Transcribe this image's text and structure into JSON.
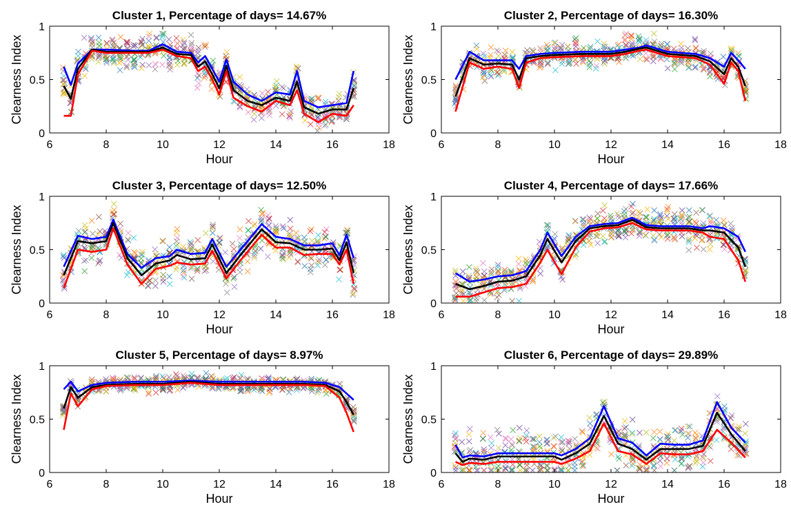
{
  "scatter_palette": [
    "#1f77b4",
    "#ff7f0e",
    "#2ca02c",
    "#d62728",
    "#9467bd",
    "#8c564b",
    "#e377c2",
    "#7f7f7f",
    "#bcbd22",
    "#17becf",
    "#f5b400",
    "#6a3d9a"
  ],
  "chart_data": [
    {
      "type": "line",
      "title": "Cluster 1, Percentage of days= 14.67%",
      "xlabel": "Hour",
      "ylabel": "Clearness Index",
      "xlim": [
        6,
        18
      ],
      "ylim": [
        0,
        1
      ],
      "xticks": [
        "6",
        "8",
        "10",
        "12",
        "14",
        "16",
        "18"
      ],
      "yticks": [
        "0",
        "0.5",
        "1"
      ],
      "scatter_spread": 0.18,
      "x": [
        6.5,
        6.75,
        7,
        7.5,
        8,
        9,
        9.5,
        10,
        10.5,
        11,
        11.25,
        11.5,
        11.75,
        12,
        12.25,
        12.5,
        13,
        13.5,
        14,
        14.5,
        14.75,
        15,
        15.5,
        16,
        16.5,
        16.75
      ],
      "series": [
        {
          "color": "#0000ff",
          "values": [
            0.62,
            0.45,
            0.65,
            0.78,
            0.78,
            0.77,
            0.77,
            0.83,
            0.76,
            0.75,
            0.66,
            0.72,
            0.6,
            0.48,
            0.69,
            0.48,
            0.36,
            0.3,
            0.38,
            0.36,
            0.58,
            0.3,
            0.24,
            0.26,
            0.28,
            0.58
          ]
        },
        {
          "color": "#000000",
          "values": [
            0.44,
            0.32,
            0.6,
            0.78,
            0.76,
            0.76,
            0.76,
            0.8,
            0.74,
            0.73,
            0.62,
            0.67,
            0.55,
            0.42,
            0.63,
            0.4,
            0.3,
            0.26,
            0.33,
            0.3,
            0.48,
            0.24,
            0.18,
            0.22,
            0.22,
            0.42
          ]
        },
        {
          "color": "#ff0000",
          "values": [
            0.16,
            0.16,
            0.55,
            0.77,
            0.75,
            0.75,
            0.75,
            0.78,
            0.72,
            0.7,
            0.58,
            0.62,
            0.5,
            0.36,
            0.58,
            0.33,
            0.25,
            0.2,
            0.3,
            0.26,
            0.4,
            0.18,
            0.1,
            0.18,
            0.16,
            0.26
          ]
        }
      ]
    },
    {
      "type": "line",
      "title": "Cluster 2, Percentage of days= 16.30%",
      "xlabel": "Hour",
      "ylabel": "Clearness Index",
      "xlim": [
        6,
        18
      ],
      "ylim": [
        0,
        1
      ],
      "xticks": [
        "6",
        "8",
        "10",
        "12",
        "14",
        "16",
        "18"
      ],
      "yticks": [
        "0",
        "0.5",
        "1"
      ],
      "scatter_spread": 0.15,
      "x": [
        6.5,
        7,
        7.5,
        8,
        8.5,
        8.75,
        9,
        9.5,
        10,
        11,
        12,
        12.5,
        13,
        13.25,
        13.5,
        14,
        14.5,
        15,
        15.5,
        16,
        16.25,
        16.5,
        16.75
      ],
      "series": [
        {
          "color": "#0000ff",
          "values": [
            0.5,
            0.76,
            0.68,
            0.68,
            0.68,
            0.6,
            0.72,
            0.74,
            0.75,
            0.76,
            0.76,
            0.78,
            0.8,
            0.82,
            0.8,
            0.76,
            0.75,
            0.74,
            0.7,
            0.62,
            0.75,
            0.68,
            0.6
          ]
        },
        {
          "color": "#000000",
          "values": [
            0.34,
            0.7,
            0.64,
            0.65,
            0.64,
            0.5,
            0.7,
            0.72,
            0.73,
            0.74,
            0.74,
            0.76,
            0.79,
            0.8,
            0.78,
            0.74,
            0.73,
            0.72,
            0.67,
            0.55,
            0.7,
            0.62,
            0.44
          ]
        },
        {
          "color": "#ff0000",
          "values": [
            0.2,
            0.66,
            0.6,
            0.62,
            0.6,
            0.42,
            0.66,
            0.7,
            0.71,
            0.72,
            0.72,
            0.74,
            0.77,
            0.78,
            0.76,
            0.72,
            0.71,
            0.7,
            0.64,
            0.46,
            0.66,
            0.58,
            0.3
          ]
        }
      ]
    },
    {
      "type": "line",
      "title": "Cluster 3, Percentage of days= 12.50%",
      "xlabel": "Hour",
      "ylabel": "Clearness Index",
      "xlim": [
        6,
        18
      ],
      "ylim": [
        0,
        1
      ],
      "xticks": [
        "6",
        "8",
        "10",
        "12",
        "14",
        "16",
        "18"
      ],
      "yticks": [
        "0",
        "0.5",
        "1"
      ],
      "scatter_spread": 0.22,
      "x": [
        6.5,
        7,
        7.5,
        8,
        8.25,
        8.75,
        9.25,
        9.75,
        10.25,
        10.5,
        11,
        11.5,
        11.75,
        12.25,
        12.75,
        13.5,
        14,
        14.5,
        15,
        15.5,
        16,
        16.25,
        16.5,
        16.75
      ],
      "series": [
        {
          "color": "#0000ff",
          "values": [
            0.34,
            0.63,
            0.6,
            0.62,
            0.78,
            0.46,
            0.33,
            0.42,
            0.44,
            0.5,
            0.46,
            0.47,
            0.6,
            0.34,
            0.5,
            0.74,
            0.62,
            0.6,
            0.54,
            0.54,
            0.56,
            0.45,
            0.64,
            0.42
          ]
        },
        {
          "color": "#000000",
          "values": [
            0.26,
            0.58,
            0.56,
            0.58,
            0.75,
            0.42,
            0.26,
            0.37,
            0.4,
            0.45,
            0.41,
            0.42,
            0.55,
            0.28,
            0.45,
            0.69,
            0.57,
            0.56,
            0.5,
            0.5,
            0.51,
            0.4,
            0.57,
            0.28
          ]
        },
        {
          "color": "#ff0000",
          "values": [
            0.14,
            0.5,
            0.48,
            0.5,
            0.7,
            0.36,
            0.18,
            0.32,
            0.35,
            0.38,
            0.36,
            0.37,
            0.49,
            0.23,
            0.4,
            0.64,
            0.52,
            0.52,
            0.45,
            0.46,
            0.46,
            0.36,
            0.5,
            0.18
          ]
        }
      ]
    },
    {
      "type": "line",
      "title": "Cluster 4, Percentage of days= 17.66%",
      "xlabel": "Hour",
      "ylabel": "Clearness Index",
      "xlim": [
        6,
        18
      ],
      "ylim": [
        0,
        1
      ],
      "xticks": [
        "6",
        "8",
        "10",
        "12",
        "14",
        "16",
        "18"
      ],
      "yticks": [
        "0",
        "0.5",
        "1"
      ],
      "scatter_spread": 0.2,
      "x": [
        6.5,
        7,
        7.5,
        8,
        8.5,
        9,
        9.5,
        9.75,
        10.25,
        10.75,
        11.25,
        11.75,
        12.25,
        12.75,
        13.25,
        13.75,
        14.25,
        14.75,
        15.25,
        15.5,
        16,
        16.5,
        16.75
      ],
      "series": [
        {
          "color": "#0000ff",
          "values": [
            0.28,
            0.2,
            0.22,
            0.25,
            0.26,
            0.3,
            0.5,
            0.66,
            0.44,
            0.62,
            0.72,
            0.74,
            0.75,
            0.8,
            0.73,
            0.72,
            0.72,
            0.72,
            0.7,
            0.72,
            0.7,
            0.62,
            0.48
          ]
        },
        {
          "color": "#000000",
          "values": [
            0.18,
            0.13,
            0.16,
            0.2,
            0.21,
            0.25,
            0.45,
            0.6,
            0.38,
            0.58,
            0.7,
            0.72,
            0.73,
            0.78,
            0.71,
            0.7,
            0.7,
            0.7,
            0.68,
            0.68,
            0.66,
            0.52,
            0.34
          ]
        },
        {
          "color": "#ff0000",
          "values": [
            0.06,
            0.06,
            0.1,
            0.14,
            0.15,
            0.18,
            0.38,
            0.5,
            0.27,
            0.52,
            0.67,
            0.7,
            0.71,
            0.75,
            0.69,
            0.68,
            0.68,
            0.68,
            0.66,
            0.62,
            0.6,
            0.4,
            0.2
          ]
        }
      ]
    },
    {
      "type": "line",
      "title": "Cluster 5, Percentage of days= 8.97%",
      "xlabel": "Hour",
      "ylabel": "Clearness Index",
      "xlim": [
        6,
        18
      ],
      "ylim": [
        0,
        1
      ],
      "xticks": [
        "6",
        "8",
        "10",
        "12",
        "14",
        "16",
        "18"
      ],
      "yticks": [
        "0",
        "0.5",
        "1"
      ],
      "scatter_spread": 0.08,
      "x": [
        6.5,
        6.75,
        7,
        7.5,
        8,
        9,
        10,
        11,
        12,
        13,
        14,
        15,
        15.75,
        16.25,
        16.5,
        16.75
      ],
      "series": [
        {
          "color": "#0000ff",
          "values": [
            0.78,
            0.85,
            0.76,
            0.82,
            0.84,
            0.85,
            0.85,
            0.86,
            0.85,
            0.85,
            0.85,
            0.85,
            0.84,
            0.8,
            0.74,
            0.68
          ]
        },
        {
          "color": "#000000",
          "values": [
            0.6,
            0.8,
            0.7,
            0.8,
            0.82,
            0.83,
            0.83,
            0.85,
            0.83,
            0.83,
            0.83,
            0.83,
            0.82,
            0.76,
            0.66,
            0.54
          ]
        },
        {
          "color": "#ff0000",
          "values": [
            0.4,
            0.74,
            0.62,
            0.78,
            0.81,
            0.82,
            0.82,
            0.84,
            0.82,
            0.82,
            0.82,
            0.82,
            0.81,
            0.7,
            0.56,
            0.38
          ]
        }
      ]
    },
    {
      "type": "line",
      "title": "Cluster 6, Percentage of days= 29.89%",
      "xlabel": "Hour",
      "ylabel": "Clearness Index",
      "xlim": [
        6,
        18
      ],
      "ylim": [
        0,
        1
      ],
      "xticks": [
        "6",
        "8",
        "10",
        "12",
        "14",
        "16",
        "18"
      ],
      "yticks": [
        "0",
        "0.5",
        "1"
      ],
      "scatter_spread": 0.25,
      "x": [
        6.5,
        6.75,
        7,
        7.5,
        8,
        8.5,
        9,
        9.5,
        10,
        10.25,
        10.75,
        11.25,
        11.75,
        12.25,
        12.75,
        13.25,
        13.75,
        14.25,
        14.75,
        15.25,
        15.75,
        16.25,
        16.75
      ],
      "series": [
        {
          "color": "#0000ff",
          "values": [
            0.26,
            0.14,
            0.16,
            0.15,
            0.18,
            0.18,
            0.18,
            0.18,
            0.18,
            0.16,
            0.22,
            0.32,
            0.62,
            0.32,
            0.28,
            0.16,
            0.27,
            0.26,
            0.26,
            0.3,
            0.66,
            0.42,
            0.28
          ]
        },
        {
          "color": "#000000",
          "values": [
            0.18,
            0.1,
            0.13,
            0.12,
            0.15,
            0.15,
            0.15,
            0.15,
            0.15,
            0.12,
            0.18,
            0.27,
            0.53,
            0.27,
            0.22,
            0.12,
            0.22,
            0.22,
            0.22,
            0.25,
            0.56,
            0.36,
            0.2
          ]
        },
        {
          "color": "#ff0000",
          "values": [
            0.1,
            0.07,
            0.09,
            0.08,
            0.1,
            0.1,
            0.1,
            0.1,
            0.1,
            0.08,
            0.13,
            0.2,
            0.46,
            0.2,
            0.17,
            0.08,
            0.18,
            0.17,
            0.17,
            0.2,
            0.4,
            0.28,
            0.14
          ]
        }
      ]
    }
  ]
}
